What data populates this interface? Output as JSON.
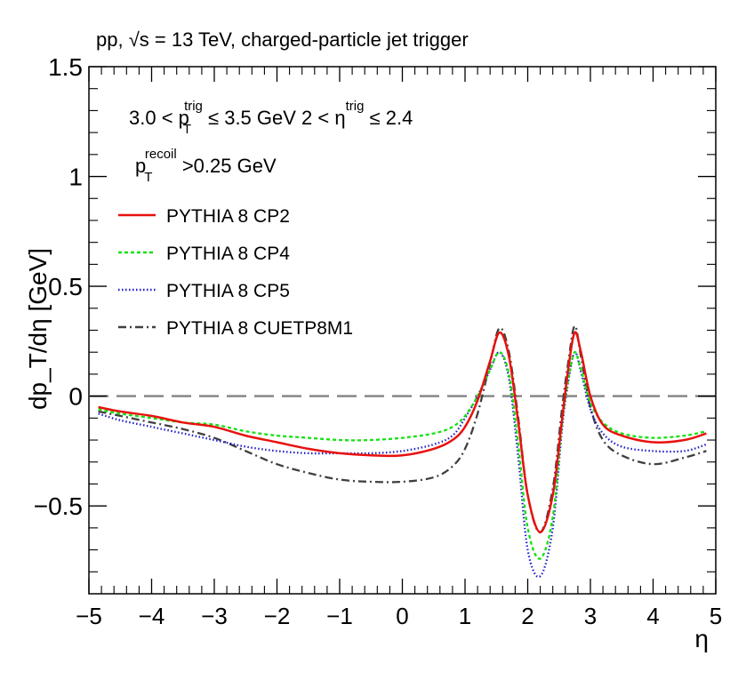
{
  "chart_data": {
    "type": "line",
    "header": "pp, √s = 13 TeV,  charged-particle jet trigger",
    "ylabel": "dp_T/dη [GeV]",
    "xlabel": "η",
    "annotations": {
      "line1_part1": "3.0 < p",
      "line1_sup1": "trig",
      "line1_sub1": "T",
      "line1_part2": " ≤ 3.5 GeV   2 < η",
      "line1_sup2": "trig",
      "line1_part3": " ≤ 2.4",
      "line2_p": "p",
      "line2_sup": "recoil",
      "line2_sub": "T",
      "line2_rest": " >0.25 GeV"
    },
    "xlim": [
      -5,
      5
    ],
    "ylim": [
      -0.9,
      1.5
    ],
    "x_ticks": [
      -5,
      -4,
      -3,
      -2,
      -1,
      0,
      1,
      2,
      3,
      4,
      5
    ],
    "x_tick_labels": [
      "−5",
      "−4",
      "−3",
      "−2",
      "−1",
      "0",
      "1",
      "2",
      "3",
      "4",
      "5"
    ],
    "y_ticks": [
      -0.5,
      0,
      0.5,
      1,
      1.5
    ],
    "y_tick_labels": [
      "−0.5",
      "0",
      "0.5",
      "1",
      "1.5"
    ],
    "reference_line": {
      "y": 0,
      "color": "#888888"
    },
    "legend_position": "top-left",
    "x": [
      -4.85,
      -4.5,
      -4.0,
      -3.5,
      -3.0,
      -2.5,
      -2.0,
      -1.5,
      -1.0,
      -0.5,
      0.0,
      0.5,
      0.8,
      1.0,
      1.2,
      1.4,
      1.55,
      1.7,
      1.85,
      2.0,
      2.2,
      2.4,
      2.55,
      2.65,
      2.75,
      2.85,
      3.0,
      3.2,
      3.5,
      4.0,
      4.5,
      4.85
    ],
    "series": [
      {
        "name": "PYTHIA 8 CP2",
        "color": "#e8110e",
        "dash": "solid",
        "values": [
          -0.05,
          -0.07,
          -0.09,
          -0.12,
          -0.14,
          -0.18,
          -0.21,
          -0.24,
          -0.26,
          -0.27,
          -0.27,
          -0.24,
          -0.2,
          -0.14,
          -0.02,
          0.16,
          0.29,
          0.18,
          -0.12,
          -0.45,
          -0.62,
          -0.45,
          -0.1,
          0.13,
          0.29,
          0.2,
          0.0,
          -0.13,
          -0.18,
          -0.21,
          -0.2,
          -0.17
        ]
      },
      {
        "name": "PYTHIA 8 CP4",
        "color": "#16e015",
        "dash": "4,3",
        "values": [
          -0.06,
          -0.08,
          -0.1,
          -0.12,
          -0.13,
          -0.16,
          -0.18,
          -0.19,
          -0.2,
          -0.2,
          -0.19,
          -0.17,
          -0.14,
          -0.09,
          0.0,
          0.12,
          0.2,
          0.1,
          -0.22,
          -0.6,
          -0.74,
          -0.55,
          -0.12,
          0.08,
          0.2,
          0.12,
          -0.03,
          -0.12,
          -0.17,
          -0.19,
          -0.18,
          -0.16
        ]
      },
      {
        "name": "PYTHIA 8 CP5",
        "color": "#1e1ec8",
        "dash": "1.5,2.5",
        "values": [
          -0.08,
          -0.11,
          -0.14,
          -0.17,
          -0.2,
          -0.23,
          -0.25,
          -0.26,
          -0.26,
          -0.26,
          -0.25,
          -0.22,
          -0.18,
          -0.1,
          0.0,
          0.12,
          0.2,
          0.08,
          -0.28,
          -0.7,
          -0.82,
          -0.6,
          -0.14,
          0.07,
          0.2,
          0.11,
          -0.06,
          -0.17,
          -0.23,
          -0.25,
          -0.25,
          -0.22
        ]
      },
      {
        "name": "PYTHIA 8 CUETP8M1",
        "color": "#404040",
        "dash": "9,4,2,4",
        "values": [
          -0.07,
          -0.09,
          -0.12,
          -0.15,
          -0.19,
          -0.25,
          -0.31,
          -0.35,
          -0.38,
          -0.39,
          -0.39,
          -0.37,
          -0.32,
          -0.24,
          -0.08,
          0.15,
          0.31,
          0.2,
          -0.1,
          -0.45,
          -0.62,
          -0.42,
          -0.05,
          0.16,
          0.32,
          0.18,
          -0.05,
          -0.2,
          -0.27,
          -0.31,
          -0.28,
          -0.25
        ]
      }
    ]
  }
}
